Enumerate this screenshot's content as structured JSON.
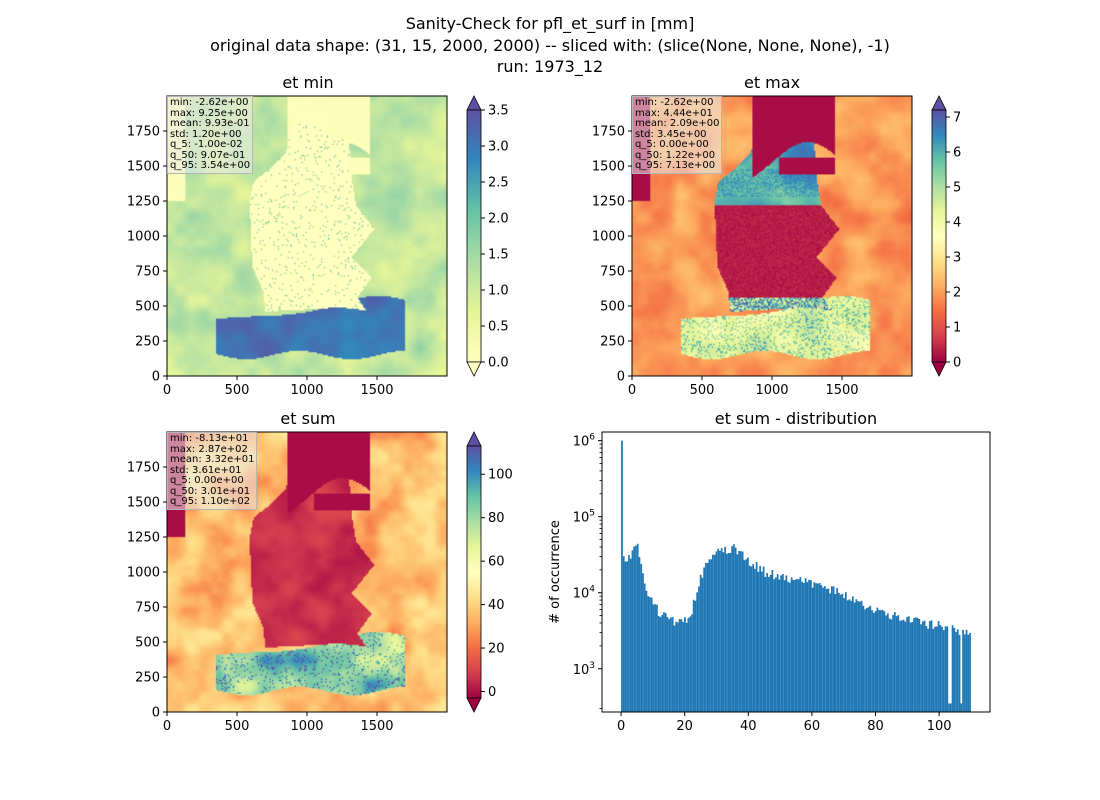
{
  "figure": {
    "title_lines": [
      "Sanity-Check for pfl_et_surf in [mm]",
      "original data shape: (31, 15, 2000, 2000) -- sliced with: (slice(None, None, None), -1)",
      "run: 1973_12"
    ]
  },
  "colors": {
    "map_palette": [
      "#9e0142",
      "#d53e4f",
      "#f46d43",
      "#fdae61",
      "#fee08b",
      "#ffffbf",
      "#e6f598",
      "#abdda4",
      "#66c2a5",
      "#3288bd",
      "#5e4fa2"
    ],
    "min_palette": [
      "#ffffbf",
      "#e6f598",
      "#abdda4",
      "#66c2a5",
      "#3288bd",
      "#5e4fa2"
    ],
    "hist_bar": "#1f77b4"
  },
  "chart_data": [
    {
      "type": "heatmap",
      "title": "et min",
      "colormap": "Spectral",
      "x_ticks": [
        "0",
        "500",
        "1000",
        "1500"
      ],
      "y_ticks": [
        "0",
        "250",
        "500",
        "750",
        "1000",
        "1250",
        "1500",
        "1750"
      ],
      "xlim": [
        0,
        2000
      ],
      "ylim": [
        0,
        2000
      ],
      "colorbar": {
        "range": [
          0.0,
          3.5
        ],
        "ticks": [
          "0.0",
          "0.5",
          "1.0",
          "1.5",
          "2.0",
          "2.5",
          "3.0",
          "3.5"
        ],
        "extend": "both"
      },
      "stats": [
        "min: -2.62e+00",
        "max: 9.25e+00",
        "mean: 9.93e-01",
        "std: 1.20e+00",
        "q_5: -1.00e-02",
        "q_50: 9.07e-01",
        "q_95: 3.54e+00"
      ]
    },
    {
      "type": "heatmap",
      "title": "et max",
      "colormap": "Spectral",
      "x_ticks": [
        "0",
        "500",
        "1000",
        "1500"
      ],
      "y_ticks": [
        "0",
        "250",
        "500",
        "750",
        "1000",
        "1250",
        "1500",
        "1750"
      ],
      "xlim": [
        0,
        2000
      ],
      "ylim": [
        0,
        2000
      ],
      "colorbar": {
        "range": [
          0,
          7.2
        ],
        "ticks": [
          "0",
          "1",
          "2",
          "3",
          "4",
          "5",
          "6",
          "7"
        ],
        "extend": "both"
      },
      "stats": [
        "min: -2.62e+00",
        "max: 4.44e+01",
        "mean: 2.09e+00",
        "std: 3.45e+00",
        "q_5: 0.00e+00",
        "q_50: 1.22e+00",
        "q_95: 7.13e+00"
      ]
    },
    {
      "type": "heatmap",
      "title": "et sum",
      "colormap": "Spectral",
      "x_ticks": [
        "0",
        "500",
        "1000",
        "1500"
      ],
      "y_ticks": [
        "0",
        "250",
        "500",
        "750",
        "1000",
        "1250",
        "1500",
        "1750"
      ],
      "xlim": [
        0,
        2000
      ],
      "ylim": [
        0,
        2000
      ],
      "colorbar": {
        "range": [
          -3,
          113
        ],
        "ticks": [
          "0",
          "20",
          "40",
          "60",
          "80",
          "100"
        ],
        "extend": "both"
      },
      "stats": [
        "min: -8.13e+01",
        "max: 2.87e+02",
        "mean: 3.32e+01",
        "std: 3.61e+01",
        "q_5: 0.00e+00",
        "q_50: 3.01e+01",
        "q_95: 1.10e+02"
      ]
    },
    {
      "type": "bar",
      "title": "et sum - distribution",
      "xlabel": "",
      "ylabel": "# of occurrence",
      "yscale": "log",
      "xlim": [
        -6,
        116
      ],
      "ylim": [
        270,
        1300000
      ],
      "x_ticks": [
        "0",
        "20",
        "40",
        "60",
        "80",
        "100"
      ],
      "y_ticks": [
        {
          "base": "10",
          "exp": "3",
          "value": 1000
        },
        {
          "base": "10",
          "exp": "4",
          "value": 10000
        },
        {
          "base": "10",
          "exp": "5",
          "value": 100000
        },
        {
          "base": "10",
          "exp": "6",
          "value": 1000000
        }
      ],
      "bins": {
        "start": 0,
        "width": 0.55
      },
      "anchors": [
        [
          0,
          1000000
        ],
        [
          0.5,
          28000
        ],
        [
          1,
          25000
        ],
        [
          2,
          27000
        ],
        [
          3,
          30000
        ],
        [
          4,
          42000
        ],
        [
          4.5,
          47000
        ],
        [
          5,
          40000
        ],
        [
          6,
          25000
        ],
        [
          7,
          15000
        ],
        [
          8,
          10000
        ],
        [
          10,
          7000
        ],
        [
          12,
          5500
        ],
        [
          15,
          4500
        ],
        [
          18,
          4000
        ],
        [
          20,
          4200
        ],
        [
          22,
          6000
        ],
        [
          24,
          12000
        ],
        [
          26,
          22000
        ],
        [
          28,
          30000
        ],
        [
          30,
          33000
        ],
        [
          33,
          37000
        ],
        [
          35,
          39000
        ],
        [
          37,
          34000
        ],
        [
          40,
          26000
        ],
        [
          45,
          19000
        ],
        [
          50,
          16500
        ],
        [
          55,
          15000
        ],
        [
          60,
          13500
        ],
        [
          65,
          11500
        ],
        [
          70,
          9000
        ],
        [
          75,
          7500
        ],
        [
          80,
          6000
        ],
        [
          85,
          5000
        ],
        [
          90,
          4500
        ],
        [
          95,
          4000
        ],
        [
          100,
          3800
        ],
        [
          105,
          3300
        ],
        [
          110,
          3000
        ]
      ]
    }
  ]
}
